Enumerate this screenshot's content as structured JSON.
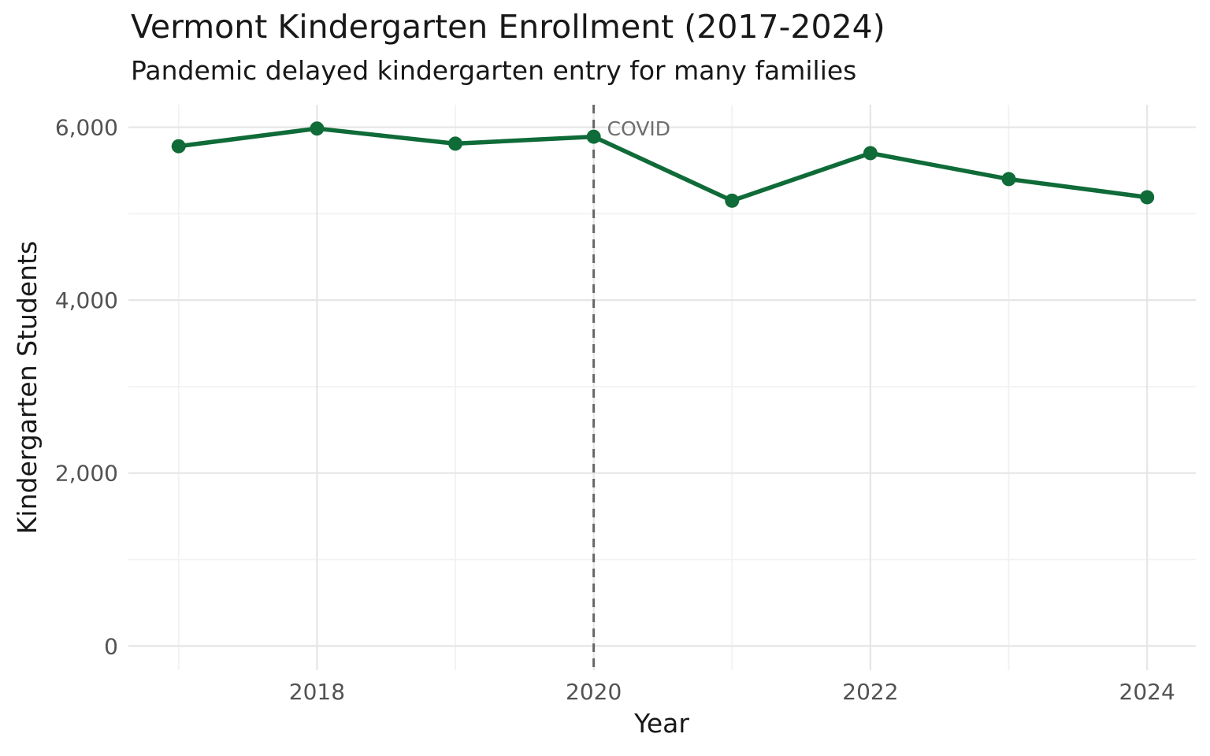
{
  "chart_data": {
    "type": "line",
    "title": "Vermont Kindergarten Enrollment (2017-2024)",
    "subtitle": "Pandemic delayed kindergarten entry for many families",
    "xlabel": "Year",
    "ylabel": "Kindergarten Students",
    "x": [
      2017,
      2018,
      2019,
      2020,
      2021,
      2022,
      2023,
      2024
    ],
    "values": [
      5780,
      5985,
      5810,
      5890,
      5150,
      5700,
      5400,
      5190
    ],
    "x_ticks": [
      2018,
      2020,
      2022,
      2024
    ],
    "x_tick_labels": [
      "2018",
      "2020",
      "2022",
      "2024"
    ],
    "x_minor_ticks": [
      2017,
      2019,
      2021,
      2023
    ],
    "y_ticks": [
      0,
      2000,
      4000,
      6000
    ],
    "y_tick_labels": [
      "0",
      "2,000",
      "4,000",
      "6,000"
    ],
    "y_minor_ticks": [
      1000,
      3000,
      5000
    ],
    "xlim": [
      2016.637,
      2024.352
    ],
    "ylim": [
      -280,
      6260
    ],
    "grid": true,
    "legend": false,
    "annotation": {
      "text": "COVID",
      "x": 2020,
      "line_style": "dashed"
    },
    "colors": {
      "line": "#0f6b38",
      "marker": "#0f6b38",
      "grid_major": "#e6e6e6",
      "grid_minor": "#f2f2f2",
      "tick_label": "#525252",
      "heading_text": "#181818",
      "annotation_line": "#666666",
      "annotation_text": "#6e6e6e",
      "background": "#ffffff"
    }
  }
}
